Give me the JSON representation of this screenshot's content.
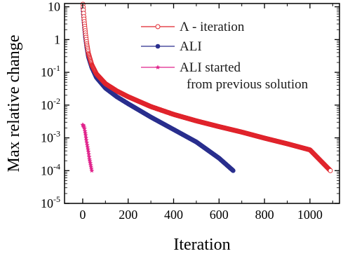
{
  "chart_data": {
    "type": "scatter",
    "xlabel": "Iteration",
    "ylabel": "Max relative change",
    "xlim": [
      -80,
      1130
    ],
    "ylim_log10": [
      -5,
      1.1
    ],
    "y_scale": "log",
    "x_ticks": [
      {
        "value": 0,
        "label": "0"
      },
      {
        "value": 200,
        "label": "200"
      },
      {
        "value": 400,
        "label": "400"
      },
      {
        "value": 600,
        "label": "600"
      },
      {
        "value": 800,
        "label": "800"
      },
      {
        "value": 1000,
        "label": "1000"
      }
    ],
    "y_ticks": [
      {
        "exp": 1,
        "base": "10",
        "sup": ""
      },
      {
        "exp": 0,
        "base": "1",
        "sup": ""
      },
      {
        "exp": -1,
        "base": "10",
        "sup": "-1"
      },
      {
        "exp": -2,
        "base": "10",
        "sup": "-2"
      },
      {
        "exp": -3,
        "base": "10",
        "sup": "-3"
      },
      {
        "exp": -4,
        "base": "10",
        "sup": "-4"
      },
      {
        "exp": -5,
        "base": "10",
        "sup": "-5"
      }
    ],
    "legend_position": "top-right",
    "series": [
      {
        "name": "Λ - iteration",
        "color": "#e0242c",
        "marker": "open-circle",
        "x": [
          1,
          3,
          5,
          8,
          12,
          18,
          25,
          40,
          60,
          100,
          150,
          200,
          300,
          400,
          500,
          600,
          700,
          800,
          900,
          1000,
          1090
        ],
        "y": [
          12,
          8,
          5,
          3,
          1.6,
          0.75,
          0.38,
          0.17,
          0.09,
          0.045,
          0.027,
          0.018,
          0.009,
          0.0052,
          0.0033,
          0.0022,
          0.0015,
          0.00098,
          0.00066,
          0.00043,
          0.0001
        ]
      },
      {
        "name": "ALI",
        "color": "#2a2f8e",
        "marker": "filled-circle",
        "x": [
          1,
          3,
          5,
          8,
          12,
          18,
          25,
          40,
          60,
          100,
          150,
          200,
          300,
          400,
          500,
          600,
          662
        ],
        "y": [
          9,
          6,
          4,
          2.3,
          1.2,
          0.58,
          0.3,
          0.14,
          0.07,
          0.033,
          0.018,
          0.011,
          0.0043,
          0.0018,
          0.00075,
          0.00024,
          0.0001
        ]
      },
      {
        "name": "ALI started\nfrom previous solution",
        "color": "#e0248c",
        "marker": "star",
        "x": [
          0,
          2,
          4,
          6,
          8,
          10,
          13,
          16,
          20,
          25,
          30,
          35,
          40
        ],
        "y": [
          0.0025,
          0.0024,
          0.0023,
          0.0021,
          0.0019,
          0.0016,
          0.0012,
          0.00085,
          0.0006,
          0.00038,
          0.00022,
          0.00015,
          0.0001
        ]
      }
    ],
    "legend": [
      {
        "label_lines": [
          "Λ - iteration"
        ]
      },
      {
        "label_lines": [
          "ALI"
        ]
      },
      {
        "label_lines": [
          "ALI started",
          "from previous solution"
        ]
      }
    ]
  }
}
